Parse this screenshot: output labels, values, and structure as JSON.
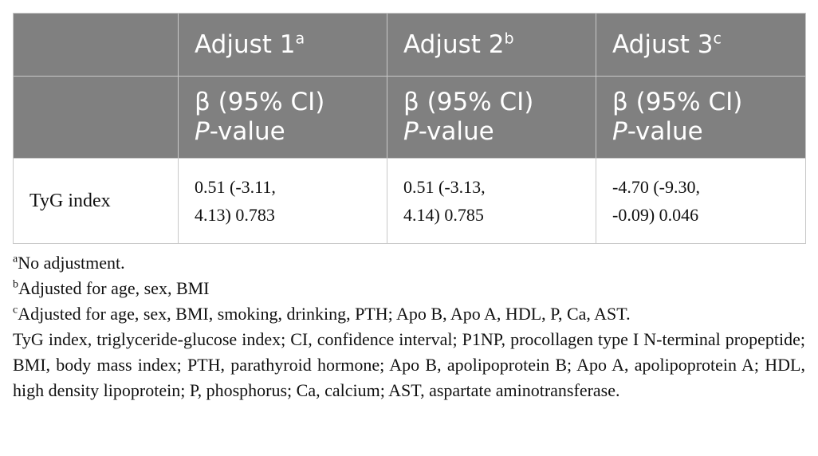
{
  "table": {
    "columns": [
      {
        "title": "Adjust 1",
        "sup": "a",
        "stat": "β (95% CI)",
        "pvalue_italic": "P",
        "pvalue_rest": "-value"
      },
      {
        "title": "Adjust 2",
        "sup": "b",
        "stat": "β (95% CI)",
        "pvalue_italic": "P",
        "pvalue_rest": "-value"
      },
      {
        "title": "Adjust 3",
        "sup": "c",
        "stat": "β (95% CI)",
        "pvalue_italic": "P",
        "pvalue_rest": "-value"
      }
    ],
    "rows": [
      {
        "label": "TyG index",
        "cells": [
          {
            "line1": "0.51 (-3.11,",
            "line2": "4.13) 0.783"
          },
          {
            "line1": "0.51 (-3.13,",
            "line2": "4.14) 0.785"
          },
          {
            "line1": "-4.70 (-9.30,",
            "line2": "-0.09) 0.046"
          }
        ]
      }
    ]
  },
  "footnotes": [
    {
      "sup": "a",
      "text": "No adjustment."
    },
    {
      "sup": "b",
      "text": "Adjusted for age, sex, BMI"
    },
    {
      "sup": "c",
      "text": "Adjusted for age, sex, BMI, smoking, drinking, PTH; Apo B, Apo A, HDL, P, Ca, AST."
    }
  ],
  "abbreviations": "TyG index, triglyceride-glucose index; CI, confidence interval; P1NP, procollagen type I N-terminal propeptide; BMI, body mass index; PTH, parathyroid hormone; Apo B, apolipoprotein B; Apo A, apolipoprotein A; HDL, high density lipoprotein; P, phosphorus; Ca, calcium; AST, aspartate aminotransferase.",
  "colors": {
    "header_bg": "#808080",
    "header_text": "#ffffff",
    "border": "#c8c8c8"
  }
}
